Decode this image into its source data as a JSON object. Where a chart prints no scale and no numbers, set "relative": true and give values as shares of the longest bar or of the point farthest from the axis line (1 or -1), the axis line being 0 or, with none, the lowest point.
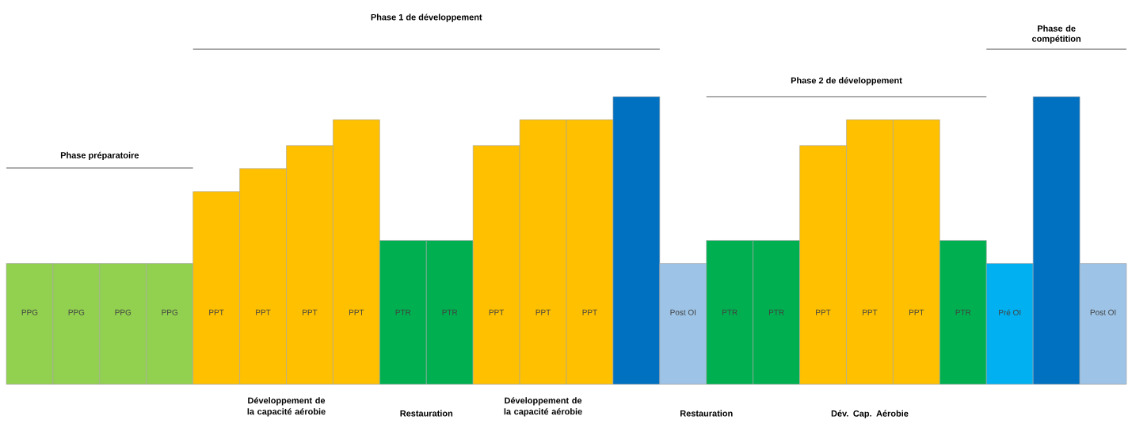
{
  "chart_data": {
    "type": "bar",
    "relative": true,
    "categories": [
      "PPG",
      "PPG",
      "PPG",
      "PPG",
      "PPT",
      "PPT",
      "PPT",
      "PPT",
      "PTR",
      "PTR",
      "PPT",
      "PPT",
      "PPT",
      null,
      "Post OI",
      "PTR",
      "PTR",
      "PPT",
      "PPT",
      "PPT",
      "PTR",
      "Pré OI",
      null,
      "Post OI"
    ],
    "values": [
      0.42,
      0.42,
      0.42,
      0.42,
      0.67,
      0.75,
      0.83,
      0.92,
      0.5,
      0.5,
      0.83,
      0.92,
      0.92,
      1,
      0.42,
      0.5,
      0.5,
      0.83,
      0.92,
      0.92,
      0.5,
      0.42,
      1,
      0.42
    ],
    "colors": [
      "#92d050",
      "#92d050",
      "#92d050",
      "#92d050",
      "#ffc000",
      "#ffc000",
      "#ffc000",
      "#ffc000",
      "#00b050",
      "#00b050",
      "#ffc000",
      "#ffc000",
      "#ffc000",
      "#0070c0",
      "#9dc3e6",
      "#00b050",
      "#00b050",
      "#ffc000",
      "#ffc000",
      "#ffc000",
      "#00b050",
      "#00b0f0",
      "#0070c0",
      "#9dc3e6"
    ],
    "annotations": [
      "Phase préparatoire",
      "Phase 1 de développement",
      "Phase 2 de développement",
      "Phase de compétition",
      "Développement de la capacité aérobie",
      "Restauration",
      "Développement de la capacité aérobie",
      "Restauration",
      "Dév. Cap. Aérobie"
    ]
  }
}
